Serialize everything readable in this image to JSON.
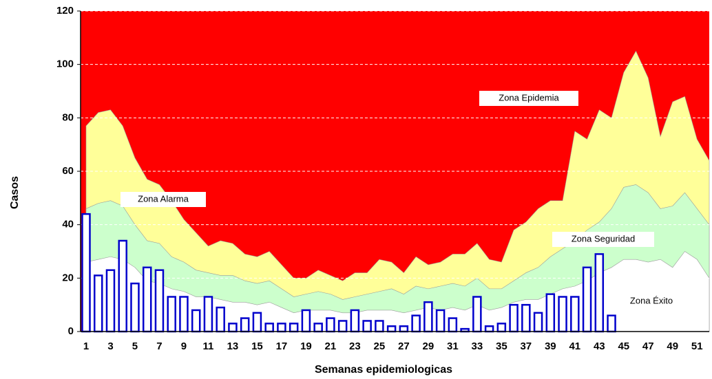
{
  "chart_data": {
    "type": "epidemic-channel",
    "xlabel": "Semanas epidemiologicas",
    "ylabel": "Casos",
    "categories": [
      1,
      null,
      3,
      null,
      5,
      null,
      7,
      null,
      9,
      null,
      11,
      null,
      13,
      null,
      15,
      null,
      17,
      null,
      19,
      null,
      21,
      null,
      23,
      null,
      25,
      null,
      27,
      null,
      29,
      null,
      31,
      null,
      33,
      null,
      35,
      null,
      37,
      null,
      39,
      null,
      41,
      null,
      43,
      null,
      45,
      null,
      47,
      null,
      49,
      null,
      51,
      null
    ],
    "ylim": [
      0,
      120
    ],
    "yticks": [
      0,
      20,
      40,
      60,
      80,
      100,
      120
    ],
    "grid": true,
    "background_zone": {
      "name": "Zona Epidemia",
      "color": "#ff0000"
    },
    "zones": [
      {
        "name": "Zona Alarma",
        "color": "#ffff99",
        "values": [
          77,
          82,
          83,
          77,
          65,
          57,
          55,
          49,
          42,
          37,
          32,
          34,
          33,
          29,
          28,
          30,
          25,
          20,
          20,
          23,
          21,
          19,
          22,
          22,
          27,
          26,
          22,
          28,
          25,
          26,
          29,
          29,
          33,
          27,
          26,
          38,
          41,
          46,
          49,
          49,
          75,
          72,
          83,
          80,
          97,
          105,
          95,
          73,
          86,
          88,
          72,
          64
        ]
      },
      {
        "name": "Zona Seguridad",
        "color": "#ccffcc",
        "values": [
          46,
          48,
          49,
          47,
          40,
          34,
          33,
          28,
          26,
          23,
          22,
          21,
          21,
          19,
          18,
          19,
          16,
          13,
          14,
          15,
          14,
          12,
          13,
          14,
          15,
          16,
          14,
          17,
          16,
          17,
          18,
          17,
          20,
          16,
          16,
          19,
          22,
          24,
          28,
          31,
          34,
          38,
          41,
          46,
          54,
          55,
          52,
          46,
          47,
          52,
          46,
          40
        ]
      },
      {
        "name": "Zona Éxito",
        "color": "#ffffff",
        "values": [
          26,
          27,
          28,
          27,
          24,
          19,
          18,
          16,
          15,
          13,
          13,
          12,
          11,
          11,
          10,
          11,
          9,
          7,
          8,
          8,
          8,
          7,
          7,
          8,
          8,
          8,
          7,
          8,
          9,
          8,
          9,
          8,
          10,
          8,
          9,
          11,
          12,
          12,
          14,
          16,
          17,
          19,
          22,
          24,
          27,
          27,
          26,
          27,
          24,
          30,
          27,
          20
        ]
      }
    ],
    "series": [
      {
        "name": "Casos",
        "color": "#0000cc",
        "values": [
          44,
          21,
          23,
          34,
          18,
          24,
          23,
          13,
          13,
          8,
          13,
          9,
          3,
          5,
          7,
          3,
          3,
          3,
          8,
          3,
          5,
          4,
          8,
          4,
          4,
          2,
          2,
          6,
          11,
          8,
          5,
          1,
          13,
          2,
          3,
          10,
          10,
          7,
          14,
          13,
          13,
          24,
          29,
          6,
          null,
          null,
          null,
          null,
          null,
          null,
          null,
          null
        ]
      }
    ]
  }
}
